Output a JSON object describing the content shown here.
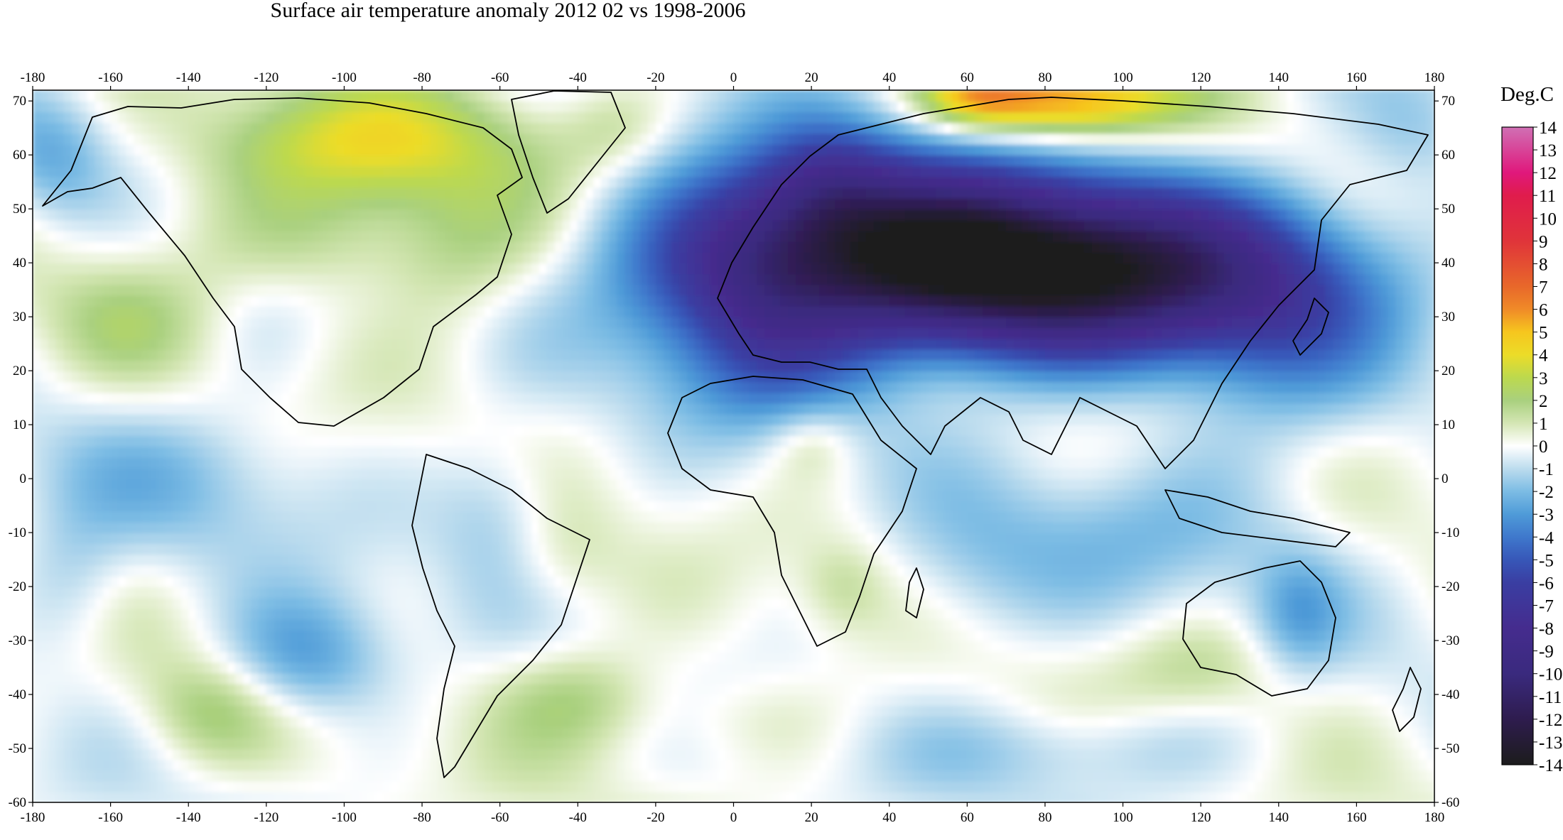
{
  "title": "Surface air temperature anomaly 2012 02 vs 1998-2006",
  "legend": {
    "unit": "Deg.C",
    "range": [
      -14,
      14
    ],
    "labels": [
      "14",
      "13",
      "12",
      "11",
      "10",
      "9",
      "8",
      "7",
      "6",
      "5",
      "4",
      "3",
      "2",
      "1",
      "0",
      "-1",
      "-2",
      "-3",
      "-4",
      "-5",
      "-6",
      "-7",
      "-8",
      "-9",
      "-10",
      "-11",
      "-12",
      "-13",
      "-14"
    ],
    "colors": [
      {
        "v": -14,
        "c": "#1c1c1c"
      },
      {
        "v": -12,
        "c": "#2e1c4e"
      },
      {
        "v": -10,
        "c": "#3a2a7e"
      },
      {
        "v": -8,
        "c": "#452c8e"
      },
      {
        "v": -6,
        "c": "#3a3ea2"
      },
      {
        "v": -5,
        "c": "#3757b8"
      },
      {
        "v": -4,
        "c": "#3f78cc"
      },
      {
        "v": -3,
        "c": "#4f9bd8"
      },
      {
        "v": -2,
        "c": "#7cbce4"
      },
      {
        "v": -1,
        "c": "#bcdcee"
      },
      {
        "v": 0,
        "c": "#ffffff"
      },
      {
        "v": 1,
        "c": "#d4e6b4"
      },
      {
        "v": 2,
        "c": "#a9d07e"
      },
      {
        "v": 3,
        "c": "#bcd94e"
      },
      {
        "v": 4,
        "c": "#ecdc28"
      },
      {
        "v": 5,
        "c": "#f6c61e"
      },
      {
        "v": 6,
        "c": "#f08a28"
      },
      {
        "v": 7,
        "c": "#e8682a"
      },
      {
        "v": 9,
        "c": "#e0343a"
      },
      {
        "v": 11,
        "c": "#e01c4c"
      },
      {
        "v": 12,
        "c": "#e0187c"
      },
      {
        "v": 14,
        "c": "#d070b4"
      }
    ]
  },
  "map_data": {
    "lon_range": [
      -180,
      180
    ],
    "lat_range": [
      -60,
      72
    ],
    "lon_ticks": [
      "-180",
      "-160",
      "-140",
      "-120",
      "-100",
      "-80",
      "-60",
      "-40",
      "-20",
      "0",
      "20",
      "40",
      "60",
      "80",
      "100",
      "120",
      "140",
      "160",
      "180"
    ],
    "lat_ticks": [
      "70",
      "60",
      "50",
      "40",
      "30",
      "20",
      "10",
      "0",
      "-10",
      "-20",
      "-30",
      "-40",
      "-50",
      "-60"
    ],
    "anomaly_features": [
      {
        "lon": 70,
        "lat": 38,
        "value": -9,
        "sx": 45,
        "sy": 11
      },
      {
        "lon": 40,
        "lat": 44,
        "value": -7,
        "sx": 35,
        "sy": 12
      },
      {
        "lon": 110,
        "lat": 38,
        "value": -5,
        "sx": 35,
        "sy": 12
      },
      {
        "lon": 5,
        "lat": 40,
        "value": -3,
        "sx": 15,
        "sy": 15
      },
      {
        "lon": 25,
        "lat": 55,
        "value": -3,
        "sx": 12,
        "sy": 8
      },
      {
        "lon": 10,
        "lat": 20,
        "value": -2,
        "sx": 20,
        "sy": 10
      },
      {
        "lon": 140,
        "lat": 22,
        "value": -2,
        "sx": 20,
        "sy": 15
      },
      {
        "lon": 85,
        "lat": 70,
        "value": 6,
        "sx": 20,
        "sy": 5
      },
      {
        "lon": 62,
        "lat": 71,
        "value": 3,
        "sx": 10,
        "sy": 4
      },
      {
        "lon": -95,
        "lat": 62,
        "value": 3.5,
        "sx": 30,
        "sy": 8
      },
      {
        "lon": -100,
        "lat": 45,
        "value": 1.8,
        "sx": 30,
        "sy": 8
      },
      {
        "lon": -70,
        "lat": 38,
        "value": 1.2,
        "sx": 14,
        "sy": 10
      },
      {
        "lon": -120,
        "lat": 28,
        "value": -0.4,
        "sx": 10,
        "sy": 8
      },
      {
        "lon": -40,
        "lat": -40,
        "value": 2,
        "sx": 15,
        "sy": 7
      },
      {
        "lon": -135,
        "lat": -43,
        "value": 1.8,
        "sx": 12,
        "sy": 7
      },
      {
        "lon": 20,
        "lat": 7,
        "value": 1.5,
        "sx": 8,
        "sy": 5
      },
      {
        "lon": 28,
        "lat": -20,
        "value": 1.2,
        "sx": 8,
        "sy": 6
      },
      {
        "lon": -45,
        "lat": -15,
        "value": 1,
        "sx": 10,
        "sy": 8
      },
      {
        "lon": -110,
        "lat": -33,
        "value": -3,
        "sx": 15,
        "sy": 8
      },
      {
        "lon": -155,
        "lat": 30,
        "value": 1.2,
        "sx": 15,
        "sy": 8
      },
      {
        "lon": -140,
        "lat": 0,
        "value": -1.5,
        "sx": 25,
        "sy": 10
      },
      {
        "lon": -60,
        "lat": -5,
        "value": -1.8,
        "sx": 12,
        "sy": 10
      },
      {
        "lon": -20,
        "lat": 40,
        "value": -1.5,
        "sx": 15,
        "sy": 15
      },
      {
        "lon": 145,
        "lat": -25,
        "value": -2,
        "sx": 8,
        "sy": 8
      },
      {
        "lon": 100,
        "lat": -10,
        "value": -1.5,
        "sx": 30,
        "sy": 10
      },
      {
        "lon": 90,
        "lat": -50,
        "value": -1.5,
        "sx": 30,
        "sy": 6
      },
      {
        "lon": 175,
        "lat": 65,
        "value": -1.5,
        "sx": 12,
        "sy": 8
      },
      {
        "lon": -175,
        "lat": 60,
        "value": -2,
        "sx": 10,
        "sy": 8
      },
      {
        "lon": 120,
        "lat": -35,
        "value": 1.2,
        "sx": 15,
        "sy": 6
      },
      {
        "lon": -30,
        "lat": 65,
        "value": 1.2,
        "sx": 10,
        "sy": 6
      },
      {
        "lon": 0,
        "lat": -45,
        "value": 0.8,
        "sx": 20,
        "sy": 6
      },
      {
        "lon": -170,
        "lat": -20,
        "value": -1.5,
        "sx": 10,
        "sy": 10
      },
      {
        "lon": 60,
        "lat": -20,
        "value": -1.2,
        "sx": 15,
        "sy": 10
      }
    ]
  }
}
